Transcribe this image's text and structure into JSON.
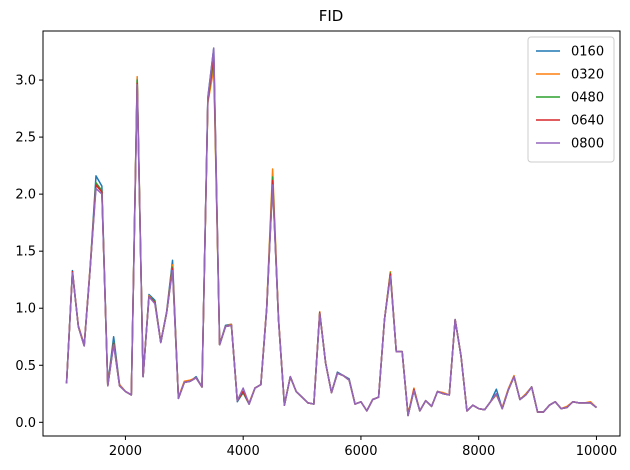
{
  "chart_data": {
    "type": "line",
    "title": "FID",
    "xlabel": "",
    "ylabel": "",
    "xlim": [
      600,
      10400
    ],
    "ylim": [
      -0.12,
      3.43
    ],
    "xticks": [
      2000,
      4000,
      6000,
      8000,
      10000
    ],
    "yticks": [
      0.0,
      0.5,
      1.0,
      1.5,
      2.0,
      2.5,
      3.0
    ],
    "grid": false,
    "legend_position": "top-right",
    "x": [
      1000,
      1100,
      1200,
      1300,
      1400,
      1500,
      1600,
      1700,
      1800,
      1900,
      2000,
      2100,
      2200,
      2300,
      2400,
      2500,
      2600,
      2700,
      2800,
      2900,
      3000,
      3100,
      3200,
      3300,
      3400,
      3500,
      3600,
      3700,
      3800,
      3900,
      4000,
      4100,
      4200,
      4300,
      4400,
      4500,
      4600,
      4700,
      4800,
      4900,
      5000,
      5100,
      5200,
      5300,
      5400,
      5500,
      5600,
      5700,
      5800,
      5900,
      6000,
      6100,
      6200,
      6300,
      6400,
      6500,
      6600,
      6700,
      6800,
      6900,
      7000,
      7100,
      7200,
      7300,
      7400,
      7500,
      7600,
      7700,
      7800,
      7900,
      8000,
      8100,
      8200,
      8300,
      8400,
      8500,
      8600,
      8700,
      8800,
      8900,
      9000,
      9100,
      9200,
      9300,
      9400,
      9500,
      9600,
      9700,
      9800,
      9900,
      10000
    ],
    "series": [
      {
        "name": "0160",
        "color": "#1f77b4",
        "values": [
          0.35,
          1.33,
          0.84,
          0.68,
          1.35,
          2.16,
          2.07,
          0.33,
          0.75,
          0.33,
          0.27,
          0.24,
          3.02,
          0.4,
          1.12,
          1.07,
          0.7,
          0.97,
          1.42,
          0.21,
          0.35,
          0.36,
          0.4,
          0.31,
          2.85,
          3.28,
          0.68,
          0.85,
          0.86,
          0.18,
          0.26,
          0.16,
          0.3,
          0.33,
          1.0,
          2.1,
          0.9,
          0.15,
          0.4,
          0.27,
          0.22,
          0.17,
          0.16,
          0.96,
          0.52,
          0.26,
          0.44,
          0.41,
          0.38,
          0.16,
          0.18,
          0.1,
          0.2,
          0.22,
          0.9,
          1.3,
          0.62,
          0.62,
          0.06,
          0.28,
          0.1,
          0.19,
          0.14,
          0.27,
          0.25,
          0.24,
          0.9,
          0.58,
          0.1,
          0.15,
          0.12,
          0.11,
          0.18,
          0.29,
          0.12,
          0.28,
          0.4,
          0.2,
          0.24,
          0.31,
          0.09,
          0.09,
          0.15,
          0.18,
          0.12,
          0.13,
          0.18,
          0.17,
          0.17,
          0.17,
          0.13
        ]
      },
      {
        "name": "0320",
        "color": "#ff7f0e",
        "values": [
          0.34,
          1.32,
          0.85,
          0.68,
          1.36,
          2.08,
          2.02,
          0.32,
          0.7,
          0.33,
          0.27,
          0.24,
          3.03,
          0.41,
          1.11,
          1.05,
          0.71,
          0.96,
          1.38,
          0.22,
          0.36,
          0.37,
          0.39,
          0.31,
          2.8,
          3.1,
          0.68,
          0.84,
          0.86,
          0.19,
          0.27,
          0.17,
          0.3,
          0.33,
          1.02,
          2.22,
          0.92,
          0.15,
          0.4,
          0.27,
          0.22,
          0.17,
          0.16,
          0.97,
          0.52,
          0.26,
          0.43,
          0.41,
          0.37,
          0.16,
          0.18,
          0.1,
          0.2,
          0.22,
          0.9,
          1.32,
          0.62,
          0.62,
          0.07,
          0.3,
          0.1,
          0.19,
          0.14,
          0.27,
          0.26,
          0.24,
          0.9,
          0.58,
          0.1,
          0.15,
          0.12,
          0.11,
          0.18,
          0.24,
          0.13,
          0.29,
          0.41,
          0.2,
          0.25,
          0.31,
          0.09,
          0.09,
          0.15,
          0.18,
          0.12,
          0.14,
          0.18,
          0.17,
          0.17,
          0.18,
          0.13
        ]
      },
      {
        "name": "0480",
        "color": "#2ca02c",
        "values": [
          0.34,
          1.31,
          0.84,
          0.67,
          1.34,
          2.1,
          2.03,
          0.32,
          0.7,
          0.32,
          0.27,
          0.24,
          3.0,
          0.4,
          1.1,
          1.06,
          0.7,
          0.96,
          1.36,
          0.21,
          0.35,
          0.36,
          0.39,
          0.31,
          2.82,
          3.18,
          0.68,
          0.84,
          0.85,
          0.19,
          0.26,
          0.16,
          0.3,
          0.33,
          1.0,
          2.15,
          0.9,
          0.15,
          0.4,
          0.27,
          0.22,
          0.17,
          0.16,
          0.96,
          0.52,
          0.26,
          0.43,
          0.41,
          0.37,
          0.16,
          0.18,
          0.1,
          0.2,
          0.22,
          0.9,
          1.31,
          0.62,
          0.62,
          0.06,
          0.28,
          0.1,
          0.19,
          0.14,
          0.27,
          0.25,
          0.24,
          0.9,
          0.58,
          0.1,
          0.15,
          0.12,
          0.11,
          0.18,
          0.25,
          0.12,
          0.28,
          0.4,
          0.2,
          0.24,
          0.31,
          0.09,
          0.09,
          0.15,
          0.18,
          0.12,
          0.13,
          0.18,
          0.17,
          0.17,
          0.17,
          0.13
        ]
      },
      {
        "name": "0640",
        "color": "#d62728",
        "values": [
          0.34,
          1.32,
          0.84,
          0.67,
          1.34,
          2.08,
          2.02,
          0.32,
          0.69,
          0.32,
          0.27,
          0.24,
          2.97,
          0.4,
          1.1,
          1.05,
          0.7,
          0.96,
          1.35,
          0.21,
          0.35,
          0.36,
          0.39,
          0.31,
          2.82,
          3.22,
          0.68,
          0.84,
          0.85,
          0.19,
          0.27,
          0.16,
          0.3,
          0.33,
          1.0,
          2.12,
          0.9,
          0.15,
          0.4,
          0.27,
          0.22,
          0.17,
          0.16,
          0.96,
          0.52,
          0.26,
          0.43,
          0.41,
          0.37,
          0.16,
          0.18,
          0.1,
          0.2,
          0.22,
          0.9,
          1.3,
          0.62,
          0.62,
          0.06,
          0.29,
          0.1,
          0.19,
          0.14,
          0.27,
          0.25,
          0.24,
          0.9,
          0.58,
          0.1,
          0.15,
          0.12,
          0.11,
          0.18,
          0.25,
          0.12,
          0.28,
          0.4,
          0.2,
          0.24,
          0.31,
          0.09,
          0.09,
          0.15,
          0.18,
          0.12,
          0.13,
          0.18,
          0.17,
          0.17,
          0.17,
          0.13
        ]
      },
      {
        "name": "0800",
        "color": "#9467bd",
        "values": [
          0.34,
          1.31,
          0.84,
          0.67,
          1.34,
          2.05,
          2.0,
          0.32,
          0.68,
          0.32,
          0.27,
          0.24,
          2.96,
          0.4,
          1.1,
          1.04,
          0.7,
          0.96,
          1.33,
          0.21,
          0.35,
          0.36,
          0.39,
          0.31,
          2.84,
          3.28,
          0.68,
          0.84,
          0.85,
          0.19,
          0.3,
          0.16,
          0.3,
          0.33,
          1.0,
          2.08,
          0.9,
          0.15,
          0.4,
          0.27,
          0.22,
          0.17,
          0.16,
          0.95,
          0.52,
          0.26,
          0.43,
          0.41,
          0.37,
          0.16,
          0.18,
          0.1,
          0.2,
          0.22,
          0.9,
          1.28,
          0.62,
          0.62,
          0.06,
          0.28,
          0.1,
          0.19,
          0.14,
          0.27,
          0.25,
          0.24,
          0.9,
          0.58,
          0.1,
          0.15,
          0.12,
          0.11,
          0.18,
          0.25,
          0.12,
          0.28,
          0.4,
          0.2,
          0.24,
          0.31,
          0.09,
          0.09,
          0.15,
          0.18,
          0.12,
          0.13,
          0.18,
          0.17,
          0.17,
          0.17,
          0.13
        ]
      }
    ]
  }
}
